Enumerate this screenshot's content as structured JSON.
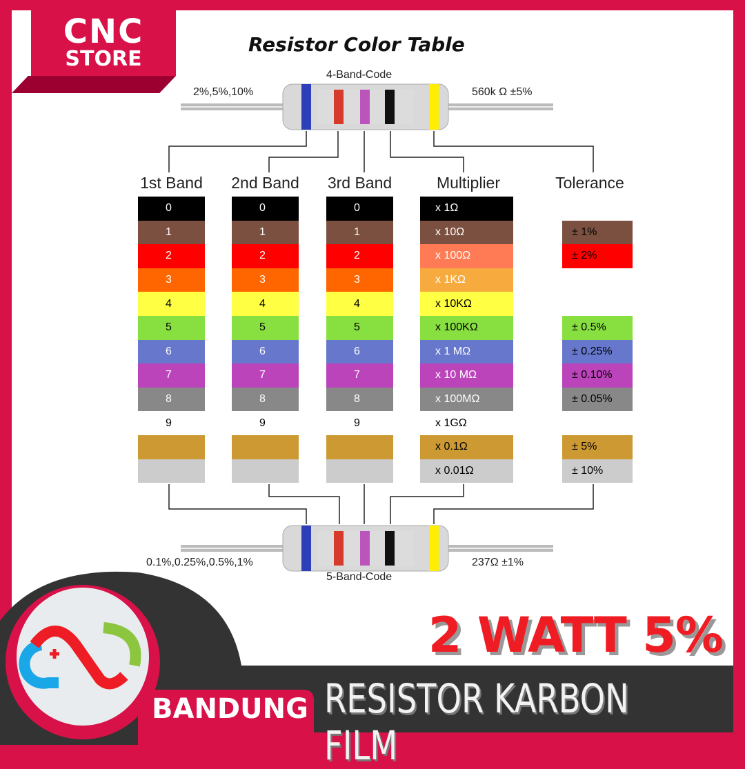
{
  "brand": {
    "line1": "CNC",
    "line2": "STORE",
    "city": "BANDUNG"
  },
  "title": "Resistor Color Table",
  "four_band": {
    "label": "4-Band-Code",
    "left": "2%,5%,10%",
    "right": "560k Ω  ±5%"
  },
  "five_band": {
    "label": "5-Band-Code",
    "left": "0.1%,0.25%,0.5%,1%",
    "right": "237Ω  ±1%"
  },
  "headers": [
    "1st Band",
    "2nd Band",
    "3rd Band",
    "Multiplier",
    "Tolerance"
  ],
  "rows": [
    {
      "color": "#000000",
      "text": "#ffffff",
      "digit": "0",
      "mult": "x 1Ω",
      "mcolor": "#000000"
    },
    {
      "color": "#7b5040",
      "text": "#ffffff",
      "digit": "1",
      "mult": "x 10Ω",
      "mcolor": "#7b5040"
    },
    {
      "color": "#ff0000",
      "text": "#ffffff",
      "digit": "2",
      "mult": "x 100Ω",
      "mcolor": "#ff7b55"
    },
    {
      "color": "#ff6600",
      "text": "#ffffff",
      "digit": "3",
      "mult": "x 1KΩ",
      "mcolor": "#f7ab3f"
    },
    {
      "color": "#ffff44",
      "text": "#000000",
      "digit": "4",
      "mult": "x 10KΩ",
      "mcolor": "#ffff44"
    },
    {
      "color": "#88e040",
      "text": "#000000",
      "digit": "5",
      "mult": "x 100KΩ",
      "mcolor": "#88e040"
    },
    {
      "color": "#6677cc",
      "text": "#ffffff",
      "digit": "6",
      "mult": "x 1 MΩ",
      "mcolor": "#6677cc"
    },
    {
      "color": "#bb44bb",
      "text": "#ffffff",
      "digit": "7",
      "mult": "x 10 MΩ",
      "mcolor": "#bb44bb"
    },
    {
      "color": "#888888",
      "text": "#ffffff",
      "digit": "8",
      "mult": "x 100MΩ",
      "mcolor": "#888888"
    },
    {
      "color": "#ffffff",
      "text": "#000000",
      "digit": "9",
      "mult": "x 1GΩ",
      "mcolor": "#ffffff"
    },
    {
      "color": "#cc9933",
      "text": "#000000",
      "digit": "",
      "mult": "x 0.1Ω",
      "mcolor": "#cc9933"
    },
    {
      "color": "#cccccc",
      "text": "#000000",
      "digit": "",
      "mult": "x 0.01Ω",
      "mcolor": "#cccccc"
    }
  ],
  "tolerance": [
    {
      "row": 1,
      "label": "± 1%",
      "color": "#7b5040",
      "text": "#000000"
    },
    {
      "row": 2,
      "label": "± 2%",
      "color": "#ff0000",
      "text": "#000000"
    },
    {
      "row": 5,
      "label": "± 0.5%",
      "color": "#88e040",
      "text": "#000000"
    },
    {
      "row": 6,
      "label": "± 0.25%",
      "color": "#6677cc",
      "text": "#000000"
    },
    {
      "row": 7,
      "label": "± 0.10%",
      "color": "#bb44bb",
      "text": "#000000"
    },
    {
      "row": 8,
      "label": "± 0.05%",
      "color": "#888888",
      "text": "#000000"
    },
    {
      "row": 10,
      "label": "± 5%",
      "color": "#cc9933",
      "text": "#000000"
    },
    {
      "row": 11,
      "label": "± 10%",
      "color": "#cccccc",
      "text": "#000000"
    }
  ],
  "headline": "2 WATT 5%",
  "product": "RESISTOR KARBON FILM",
  "colors": {
    "brand_red": "#d81149",
    "dark": "#333333",
    "headline_red": "#f01c24"
  }
}
